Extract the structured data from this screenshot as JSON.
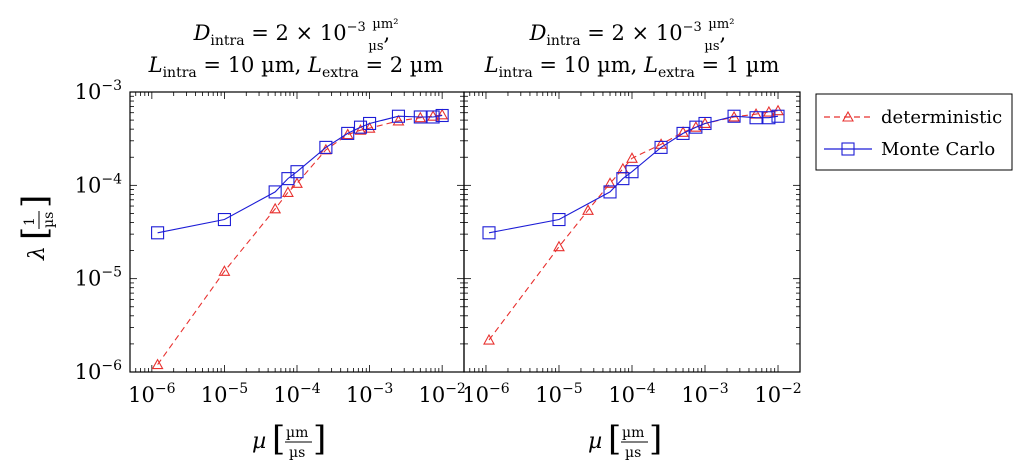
{
  "chart_data": {
    "type": "scatter",
    "xscale": "log",
    "yscale": "log",
    "ylabel": "λ [1/µs]",
    "ylim": [
      1e-06,
      0.001
    ],
    "xlim": [
      5e-07,
      0.02
    ],
    "x_ticks": [
      1e-06,
      1e-05,
      0.0001,
      0.001,
      0.01
    ],
    "y_ticks": [
      1e-06,
      1e-05,
      0.0001,
      0.001
    ],
    "grid": false,
    "legend": {
      "placement": "outside-right",
      "entries": [
        "deterministic",
        "Monte Carlo"
      ]
    },
    "colors": {
      "deterministic": "#e8312f",
      "monte_carlo": "#1c1cd6"
    },
    "panels": [
      {
        "title_line1": "D_intra = 2 × 10^-3 µm²/µs,",
        "title_line2": "L_intra = 10 µm, L_extra = 2 µm",
        "xlabel": "µ [µm/µs]",
        "series": [
          {
            "name": "deterministic",
            "style": "dashed-triangle",
            "x": [
              1.2e-06,
              1e-05,
              5e-05,
              7.5e-05,
              0.0001,
              0.00025,
              0.0005,
              0.00075,
              0.001,
              0.0025,
              0.005,
              0.0075,
              0.01
            ],
            "y": [
              1.2e-06,
              1.2e-05,
              5.6e-05,
              8.4e-05,
              0.000105,
              0.00024,
              0.00035,
              0.00039,
              0.00041,
              0.00049,
              0.00053,
              0.00055,
              0.00057
            ]
          },
          {
            "name": "Monte Carlo",
            "style": "solid-square",
            "x": [
              1.2e-06,
              1e-05,
              5e-05,
              7.5e-05,
              0.0001,
              0.00025,
              0.0005,
              0.00075,
              0.001,
              0.0025,
              0.005,
              0.0075,
              0.01
            ],
            "y": [
              3.1e-05,
              4.3e-05,
              8.5e-05,
              0.000118,
              0.00014,
              0.000255,
              0.00036,
              0.00042,
              0.00046,
              0.00055,
              0.00054,
              0.00054,
              0.00056
            ]
          }
        ]
      },
      {
        "title_line1": "D_intra = 2 × 10^-3 µm²/µs,",
        "title_line2": "L_intra = 10 µm, L_extra = 1 µm",
        "xlabel": "µ [µm/µs]",
        "series": [
          {
            "name": "deterministic",
            "style": "dashed-triangle",
            "x": [
              1.1e-06,
              1e-05,
              2.5e-05,
              5e-05,
              7.5e-05,
              0.0001,
              0.00025,
              0.0005,
              0.00075,
              0.001,
              0.0025,
              0.005,
              0.0075,
              0.01
            ],
            "y": [
              2.2e-06,
              2.2e-05,
              5.4e-05,
              0.000105,
              0.00015,
              0.000195,
              0.000275,
              0.00037,
              0.00042,
              0.00046,
              0.00054,
              0.00058,
              0.00061,
              0.00063
            ]
          },
          {
            "name": "Monte Carlo",
            "style": "solid-square",
            "x": [
              1.1e-06,
              1e-05,
              5e-05,
              7.5e-05,
              0.0001,
              0.00025,
              0.0005,
              0.00075,
              0.001,
              0.0025,
              0.005,
              0.0075,
              0.01
            ],
            "y": [
              3.1e-05,
              4.3e-05,
              8.5e-05,
              0.000118,
              0.00014,
              0.000255,
              0.00036,
              0.00042,
              0.00046,
              0.00055,
              0.00053,
              0.00053,
              0.00055
            ]
          }
        ]
      }
    ]
  }
}
